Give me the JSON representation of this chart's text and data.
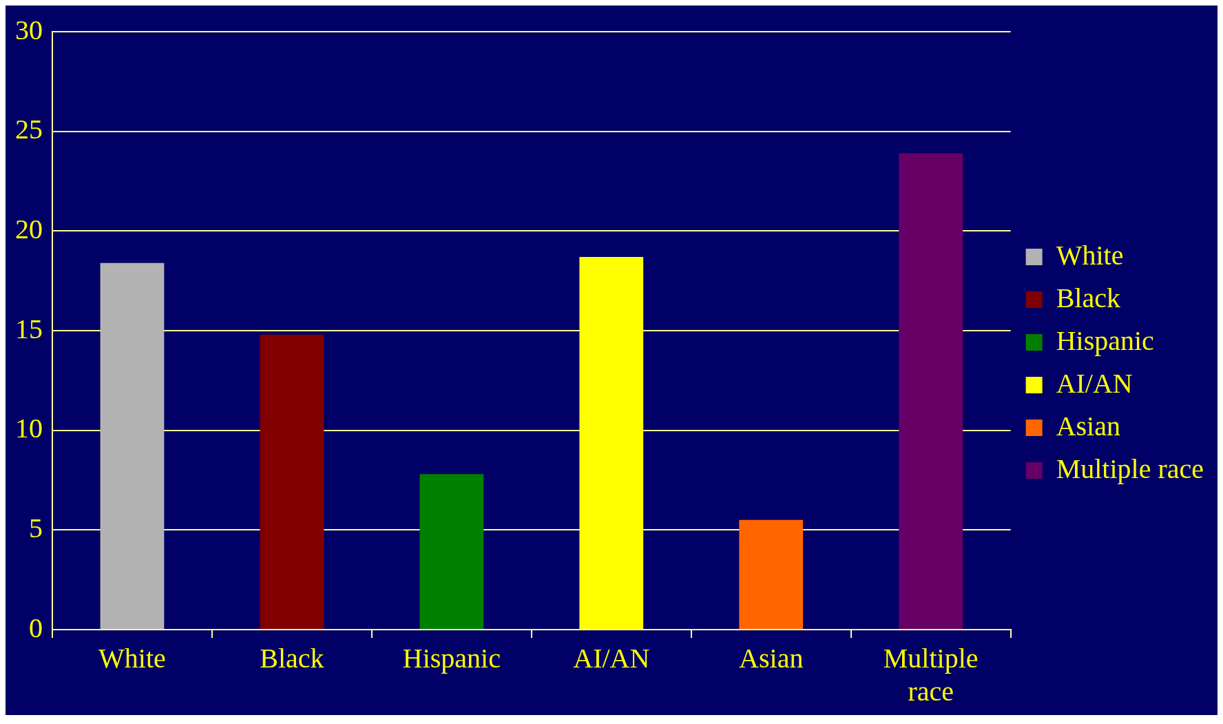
{
  "chart_data": {
    "type": "bar",
    "categories": [
      "White",
      "Black",
      "Hispanic",
      "AI/AN",
      "Asian",
      "Multiple race"
    ],
    "series": [
      {
        "name": "White",
        "color": "#b3b3b3",
        "values": [
          18.4,
          null,
          null,
          null,
          null,
          null
        ]
      },
      {
        "name": "Black",
        "color": "#800000",
        "values": [
          null,
          14.8,
          null,
          null,
          null,
          null
        ]
      },
      {
        "name": "Hispanic",
        "color": "#008000",
        "values": [
          null,
          null,
          7.8,
          null,
          null,
          null
        ]
      },
      {
        "name": "AI/AN",
        "color": "#ffff00",
        "values": [
          null,
          null,
          null,
          18.7,
          null,
          null
        ]
      },
      {
        "name": "Asian",
        "color": "#ff6600",
        "values": [
          null,
          null,
          null,
          null,
          5.5,
          null
        ]
      },
      {
        "name": "Multiple race",
        "color": "#660066",
        "values": [
          null,
          null,
          null,
          null,
          null,
          23.9
        ]
      }
    ],
    "ylim": [
      0,
      30
    ],
    "yticks": [
      0,
      5,
      10,
      15,
      20,
      25,
      30
    ],
    "grid": "y",
    "legend": "right"
  }
}
